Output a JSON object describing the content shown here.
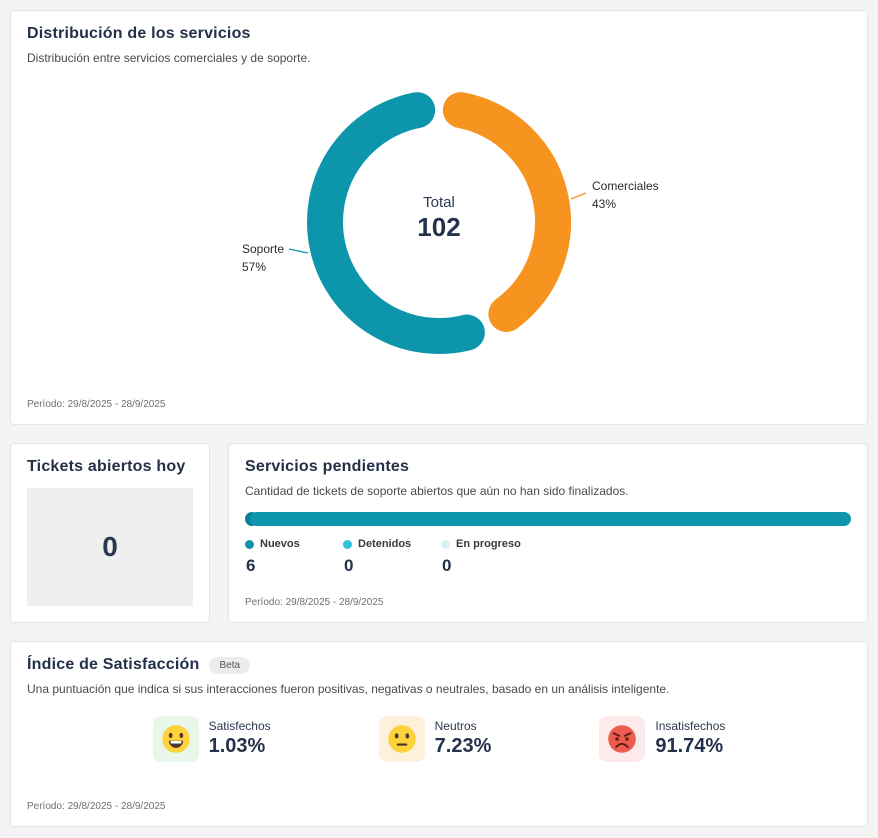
{
  "distribution_card": {
    "title": "Distribución de los servicios",
    "subtitle": "Distribución entre servicios comerciales y de soporte.",
    "center_label": "Total",
    "center_value": "102",
    "period": "Período: 29/8/2025 - 28/9/2025"
  },
  "chart_data": [
    {
      "type": "pie",
      "variant": "donut",
      "title": "Distribución de los servicios",
      "labels": [
        "Comerciales",
        "Soporte"
      ],
      "values": [
        43,
        57
      ],
      "display": [
        "43%",
        "57%"
      ],
      "center_label": "Total",
      "center_value": 102,
      "colors": [
        "#f6941f",
        "#0d96ab"
      ]
    },
    {
      "type": "bar",
      "orientation": "horizontal-stacked",
      "title": "Servicios pendientes",
      "categories": [
        "Nuevos",
        "Detenidos",
        "En progreso"
      ],
      "values": [
        6,
        0,
        0
      ],
      "colors": [
        "#0d96ab",
        "#2fc1d8",
        "#d7f0f6"
      ],
      "bar_start_dot_color": "#0a7f93"
    }
  ],
  "tickets_card": {
    "title": "Tickets abiertos hoy",
    "value": "0"
  },
  "pending_card": {
    "title": "Servicios pendientes",
    "subtitle": "Cantidad de tickets de soporte abiertos que aún no han sido finalizados.",
    "period": "Período: 29/8/2025 - 28/9/2025"
  },
  "satisfaction_card": {
    "title": "Índice de Satisfacción",
    "badge": "Beta",
    "subtitle": "Una puntuación que indica si sus interacciones fueron positivas, negativas o neutrales, basado en un análisis inteligente.",
    "period": "Período: 29/8/2025 - 28/9/2025",
    "stats": [
      {
        "icon": "satisfied-emoji-icon",
        "label": "Satisfechos",
        "value": "1.03%",
        "bg": "#e9f6ea"
      },
      {
        "icon": "neutral-emoji-icon",
        "label": "Neutros",
        "value": "7.23%",
        "bg": "#fdf1db"
      },
      {
        "icon": "angry-emoji-icon",
        "label": "Insatisfechos",
        "value": "91.74%",
        "bg": "#fcebea"
      }
    ]
  },
  "colors": {
    "teal": "#0d96ab",
    "orange": "#f6941f",
    "navy_text": "#25324b",
    "page_background": "#f4f4f5",
    "card_border": "#e4e4e4"
  }
}
